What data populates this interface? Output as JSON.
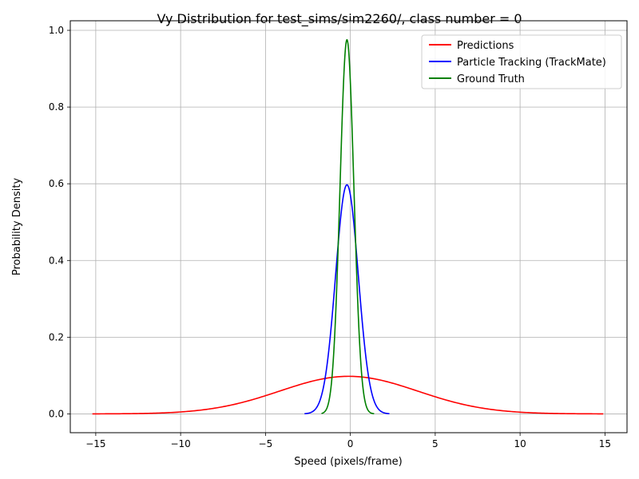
{
  "chart_data": {
    "type": "line",
    "title": "Vy Distribution for test_sims/sim2260/, class number = 0",
    "xlabel": "Speed (pixels/frame)",
    "ylabel": "Probability Density",
    "xlim": [
      -16.5,
      16.3
    ],
    "ylim": [
      -0.049,
      1.025
    ],
    "xticks": [
      -15,
      -10,
      -5,
      0,
      5,
      10,
      15
    ],
    "xtick_labels": [
      "−15",
      "−10",
      "−5",
      "0",
      "5",
      "10",
      "15"
    ],
    "yticks": [
      0.0,
      0.2,
      0.4,
      0.6,
      0.8,
      1.0
    ],
    "ytick_labels": [
      "0.0",
      "0.2",
      "0.4",
      "0.6",
      "0.8",
      "1.0"
    ],
    "grid": true,
    "legend_position": "top-right",
    "series": [
      {
        "name": "Predictions",
        "color": "#ff0000",
        "distribution": "gaussian",
        "mean": -0.1,
        "std": 4.07,
        "range": [
          -15.2,
          14.9
        ]
      },
      {
        "name": "Particle Tracking (TrackMate)",
        "color": "#0000ff",
        "distribution": "gaussian",
        "mean": -0.2,
        "std": 0.668,
        "range": [
          -2.7,
          2.3
        ]
      },
      {
        "name": "Ground Truth",
        "color": "#008000",
        "distribution": "gaussian",
        "mean": -0.2,
        "std": 0.409,
        "range": [
          -1.7,
          1.4
        ]
      }
    ]
  }
}
